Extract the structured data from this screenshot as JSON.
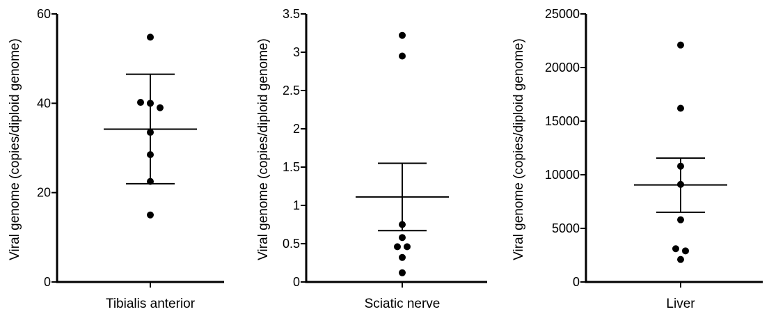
{
  "chart_data": [
    {
      "type": "scatter",
      "category": "Tibialis anterior",
      "ylabel": "Viral genome (copies/diploid genome)",
      "ylim": [
        0,
        60
      ],
      "yticks": [
        0,
        20,
        40,
        60
      ],
      "ytick_labels": [
        "0",
        "20",
        "40",
        "60"
      ],
      "points": [
        54.8,
        40.2,
        40.0,
        39.0,
        33.5,
        28.5,
        22.5,
        15.0
      ],
      "mean": 34.2,
      "error_upper": 46.5,
      "error_lower": 22.0
    },
    {
      "type": "scatter",
      "category": "Sciatic nerve",
      "ylabel": "Viral genome (copies/diploid genome)",
      "ylim": [
        0,
        3.5
      ],
      "yticks": [
        0,
        0.5,
        1,
        1.5,
        2,
        2.5,
        3,
        3.5
      ],
      "ytick_labels": [
        "0",
        "0.5",
        "1",
        "1.5",
        "2",
        "2.5",
        "3",
        "3.5"
      ],
      "points": [
        3.22,
        2.95,
        0.75,
        0.58,
        0.46,
        0.46,
        0.32,
        0.12
      ],
      "mean": 1.11,
      "error_upper": 1.55,
      "error_lower": 0.67
    },
    {
      "type": "scatter",
      "category": "Liver",
      "ylabel": "Viral genome (copies/diploid genome)",
      "ylim": [
        0,
        25000
      ],
      "yticks": [
        0,
        5000,
        10000,
        15000,
        20000,
        25000
      ],
      "ytick_labels": [
        "0",
        "5000",
        "10000",
        "15000",
        "20000",
        "25000"
      ],
      "points": [
        22100,
        16200,
        10800,
        9100,
        5800,
        3100,
        2900,
        2100
      ],
      "mean": 9050,
      "error_upper": 11550,
      "error_lower": 6500
    }
  ]
}
